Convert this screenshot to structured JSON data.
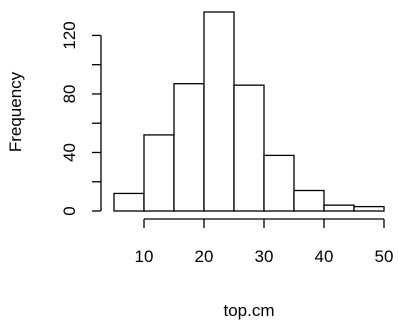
{
  "chart_data": {
    "type": "bar",
    "title": "",
    "xlabel": "top.cm",
    "ylabel": "Frequency",
    "bin_edges": [
      5,
      10,
      15,
      20,
      25,
      30,
      35,
      40,
      45,
      50
    ],
    "values": [
      12,
      52,
      87,
      136,
      86,
      38,
      14,
      4,
      3
    ],
    "xlim": [
      5,
      50
    ],
    "ylim": [
      0,
      136
    ],
    "x_ticks": [
      10,
      20,
      30,
      40,
      50
    ],
    "x_tick_labels": [
      "10",
      "20",
      "30",
      "40",
      "50"
    ],
    "y_ticks": [
      0,
      20,
      40,
      60,
      80,
      100,
      120
    ],
    "y_tick_labels": [
      "0",
      "",
      "40",
      "",
      "80",
      "",
      "120"
    ],
    "grid": false,
    "legend": "none",
    "bar_fill": "#ffffff",
    "bar_stroke": "#000000"
  }
}
